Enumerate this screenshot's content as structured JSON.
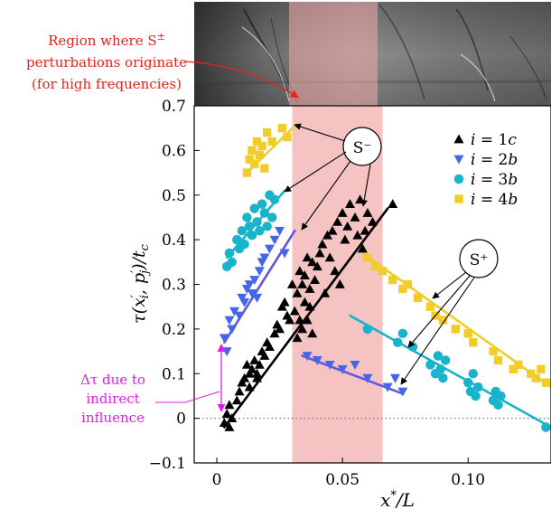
{
  "chart_data": {
    "type": "scatter",
    "xlabel": "x*/L",
    "ylabel": "τ(x′ᵢ, p′ⱼ)/t_c",
    "ylabel_parts": {
      "a": "τ(x",
      "b": "′",
      "c": "i",
      "d": ", p",
      "e": "′",
      "f": "j",
      "g": ")/t",
      "h": "c"
    },
    "xlabel_parts": {
      "a": "x",
      "b": "*",
      "c": "/L"
    },
    "xlim": [
      -0.009,
      0.133
    ],
    "ylim": [
      -0.1,
      0.7
    ],
    "x_ticks": [
      {
        "value": 0,
        "label": "0"
      },
      {
        "value": 0.05,
        "label": "0.05"
      },
      {
        "value": 0.1,
        "label": "0.10"
      }
    ],
    "y_ticks": [
      {
        "value": -0.1,
        "label": "−0.1"
      },
      {
        "value": 0,
        "label": "0"
      },
      {
        "value": 0.1,
        "label": "0.1"
      },
      {
        "value": 0.2,
        "label": "0.2"
      },
      {
        "value": 0.3,
        "label": "0.3"
      },
      {
        "value": 0.4,
        "label": "0.4"
      },
      {
        "value": 0.5,
        "label": "0.5"
      },
      {
        "value": 0.6,
        "label": "0.6"
      },
      {
        "value": 0.7,
        "label": "0.7"
      }
    ],
    "shaded_region": {
      "x": [
        0.03,
        0.066
      ],
      "color": "#f2aaaa"
    },
    "zero_line": "dotted",
    "legend_placement": "top-right",
    "series": [
      {
        "name": "i = 1c",
        "label_parts": [
          "i",
          " = 1",
          "c"
        ],
        "marker": "triangle-up",
        "color": "#000000",
        "x": [
          0.003,
          0.004,
          0.005,
          0.005,
          0.006,
          0.008,
          0.009,
          0.01,
          0.011,
          0.012,
          0.013,
          0.013,
          0.014,
          0.015,
          0.016,
          0.016,
          0.017,
          0.018,
          0.019,
          0.02,
          0.021,
          0.023,
          0.024,
          0.025,
          0.026,
          0.027,
          0.028,
          0.029,
          0.03,
          0.031,
          0.032,
          0.032,
          0.033,
          0.033,
          0.034,
          0.034,
          0.035,
          0.035,
          0.036,
          0.036,
          0.037,
          0.037,
          0.038,
          0.038,
          0.039,
          0.04,
          0.041,
          0.042,
          0.043,
          0.044,
          0.045,
          0.046,
          0.047,
          0.048,
          0.049,
          0.05,
          0.051,
          0.052,
          0.053,
          0.055,
          0.056,
          0.057,
          0.058,
          0.059,
          0.06,
          0.062,
          0.07
        ],
        "y": [
          -0.01,
          0.01,
          0.03,
          -0.02,
          0.0,
          0.04,
          0.06,
          0.08,
          0.09,
          0.12,
          0.1,
          0.07,
          0.11,
          0.13,
          0.1,
          0.09,
          0.12,
          0.15,
          0.14,
          0.17,
          0.16,
          0.19,
          0.21,
          0.2,
          0.25,
          0.26,
          0.23,
          0.22,
          0.3,
          0.24,
          0.28,
          0.18,
          0.33,
          0.22,
          0.3,
          0.2,
          0.32,
          0.26,
          0.36,
          0.22,
          0.29,
          0.25,
          0.35,
          0.19,
          0.31,
          0.34,
          0.37,
          0.39,
          0.28,
          0.41,
          0.36,
          0.42,
          0.33,
          0.44,
          0.3,
          0.46,
          0.4,
          0.43,
          0.48,
          0.45,
          0.41,
          0.49,
          0.38,
          0.42,
          0.46,
          0.44,
          0.48
        ],
        "fit": {
          "x": [
            0.003,
            0.068
          ],
          "y": [
            -0.02,
            0.47
          ]
        }
      },
      {
        "name": "i = 2b",
        "label_parts": [
          "i",
          " = 2",
          "b"
        ],
        "marker": "triangle-down",
        "color": "#4466e8",
        "x": [
          0.003,
          0.004,
          0.005,
          0.006,
          0.007,
          0.009,
          0.01,
          0.011,
          0.012,
          0.013,
          0.014,
          0.015,
          0.016,
          0.017,
          0.018,
          0.019,
          0.021,
          0.023,
          0.025,
          0.027,
          0.036,
          0.04,
          0.045,
          0.05,
          0.055,
          0.06,
          0.068,
          0.071,
          0.074
        ],
        "y": [
          0.18,
          0.15,
          0.22,
          0.2,
          0.24,
          0.23,
          0.27,
          0.26,
          0.29,
          0.3,
          0.28,
          0.31,
          0.27,
          0.33,
          0.35,
          0.36,
          0.38,
          0.4,
          0.42,
          0.37,
          0.14,
          0.13,
          0.12,
          0.11,
          0.12,
          0.09,
          0.07,
          0.09,
          0.06
        ],
        "fit": {
          "x": [
            0.003,
            0.031
          ],
          "y": [
            0.17,
            0.42
          ]
        },
        "fit2": {
          "x": [
            0.034,
            0.074
          ],
          "y": [
            0.14,
            0.055
          ]
        }
      },
      {
        "name": "i = 3b",
        "label_parts": [
          "i",
          " = 3",
          "b"
        ],
        "marker": "circle",
        "color": "#19b3cc",
        "x": [
          0.004,
          0.005,
          0.006,
          0.008,
          0.009,
          0.01,
          0.011,
          0.012,
          0.013,
          0.014,
          0.015,
          0.016,
          0.017,
          0.018,
          0.019,
          0.02,
          0.021,
          0.022,
          0.023,
          0.06,
          0.072,
          0.074,
          0.078,
          0.085,
          0.087,
          0.088,
          0.089,
          0.09,
          0.091,
          0.1,
          0.101,
          0.102,
          0.103,
          0.104,
          0.11,
          0.111,
          0.112,
          0.113,
          0.131
        ],
        "y": [
          0.34,
          0.37,
          0.35,
          0.4,
          0.38,
          0.42,
          0.39,
          0.45,
          0.43,
          0.41,
          0.47,
          0.44,
          0.42,
          0.48,
          0.46,
          0.43,
          0.5,
          0.45,
          0.49,
          0.2,
          0.17,
          0.19,
          0.16,
          0.12,
          0.1,
          0.14,
          0.11,
          0.09,
          0.13,
          0.08,
          0.06,
          0.1,
          0.05,
          0.07,
          0.04,
          0.06,
          0.03,
          0.05,
          -0.02
        ],
        "fit": {
          "x": [
            0.004,
            0.027
          ],
          "y": [
            0.36,
            0.51
          ]
        },
        "fit2": {
          "x": [
            0.053,
            0.133
          ],
          "y": [
            0.23,
            -0.02
          ]
        }
      },
      {
        "name": "i = 4b",
        "label_parts": [
          "i",
          " = 4",
          "b"
        ],
        "marker": "square",
        "color": "#f2cc28",
        "x": [
          0.012,
          0.013,
          0.014,
          0.015,
          0.016,
          0.017,
          0.018,
          0.019,
          0.02,
          0.022,
          0.026,
          0.028,
          0.06,
          0.063,
          0.066,
          0.07,
          0.074,
          0.076,
          0.08,
          0.085,
          0.087,
          0.09,
          0.095,
          0.1,
          0.102,
          0.11,
          0.112,
          0.118,
          0.12,
          0.125,
          0.127,
          0.129,
          0.131
        ],
        "y": [
          0.55,
          0.58,
          0.6,
          0.57,
          0.62,
          0.59,
          0.61,
          0.56,
          0.64,
          0.62,
          0.65,
          0.63,
          0.36,
          0.34,
          0.33,
          0.31,
          0.29,
          0.3,
          0.27,
          0.25,
          0.23,
          0.22,
          0.2,
          0.19,
          0.17,
          0.15,
          0.13,
          0.11,
          0.12,
          0.1,
          0.09,
          0.11,
          0.08
        ],
        "fit": {
          "x": [
            0.012,
            0.032
          ],
          "y": [
            0.55,
            0.66
          ]
        },
        "fit2": {
          "x": [
            0.058,
            0.133
          ],
          "y": [
            0.37,
            0.07
          ]
        }
      }
    ],
    "annotations": {
      "region_label": [
        "Region where S",
        "±",
        "perturbations originate",
        "(for high frequencies)"
      ],
      "s_minus": "S⁻",
      "s_plus": "S⁺",
      "delta_tau": [
        "Δτ due to",
        "indirect",
        "influence"
      ]
    }
  },
  "colors": {
    "region_text": "#e8221c",
    "delta_tau": "#e21ee8",
    "shade": "#f2aaaa",
    "fit_1c": "#000000",
    "fit_2b": "#6655dd",
    "fit_3b": "#19b3cc",
    "fit_4b": "#f2cc28"
  }
}
